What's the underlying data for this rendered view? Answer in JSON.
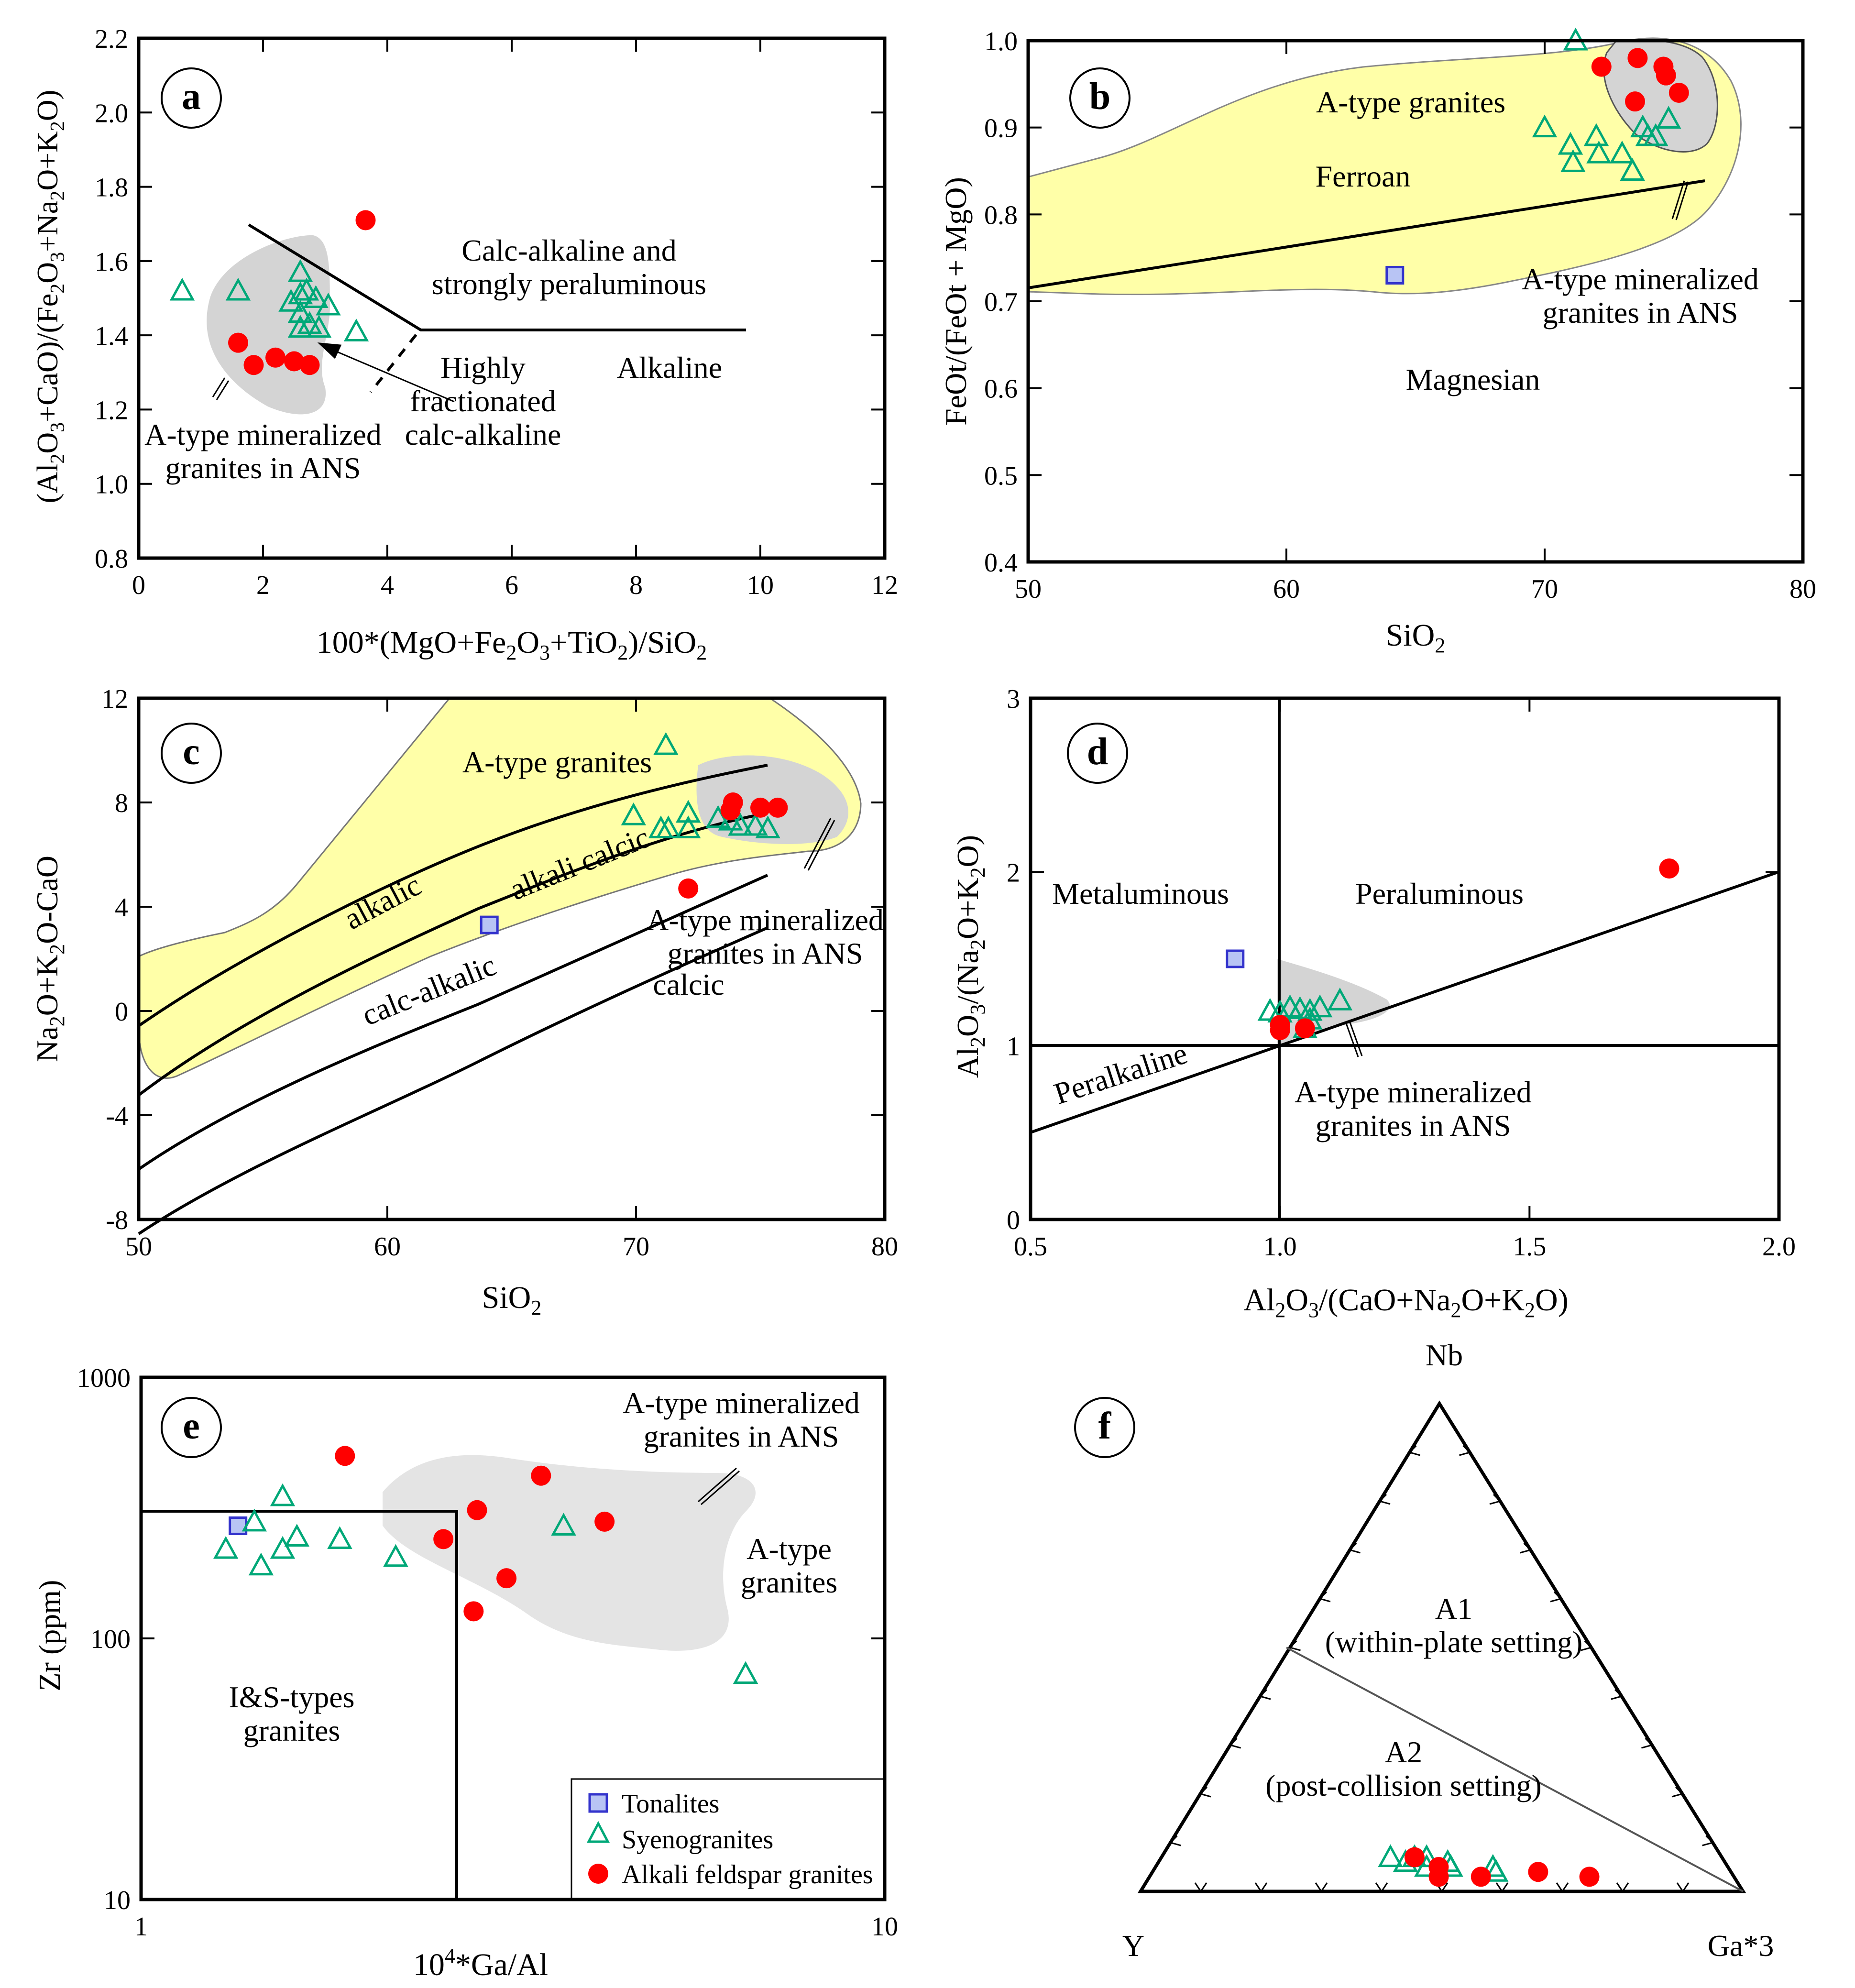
{
  "colors": {
    "a_type_field": "#ffffa8",
    "ans_field": "#d4d4d4",
    "ans_field_e": "#e4e4e4",
    "tonalite": "#3333cc",
    "tonalite_fill": "#b8c4f4",
    "syenogranite": "#00a878",
    "alkali_feldspar_granite": "#ff0000"
  },
  "legend": {
    "tonalites": "Tonalites",
    "syenogranites": "Syenogranites",
    "alkali_feldspar_granites": "Alkali feldspar granites"
  },
  "chart_data": [
    {
      "panel": "a",
      "type": "scatter",
      "xlabel": "100*(MgO+Fe2O3+TiO2)/SiO2",
      "ylabel": "(Al2O3+CaO)/(Fe2O3+Na2O+K2O)",
      "xlim": [
        0,
        12
      ],
      "ylim": [
        0.8,
        2.2
      ],
      "xticks": [
        "0",
        "2",
        "4",
        "6",
        "8",
        "10",
        "12"
      ],
      "yticks": [
        "0.8",
        "1.0",
        "1.2",
        "1.4",
        "1.6",
        "1.8",
        "2.0",
        "2.2"
      ],
      "annotations": [
        "Calc-alkaline and",
        "strongly peraluminous",
        "Alkaline",
        "Highly",
        "fractionated",
        "calc-alkaline",
        "A-type mineralized",
        "granites in ANS"
      ],
      "series": [
        {
          "name": "Syenogranites",
          "points": [
            [
              0.7,
              1.52
            ],
            [
              1.6,
              1.52
            ],
            [
              2.6,
              1.57
            ],
            [
              2.45,
              1.49
            ],
            [
              2.6,
              1.51
            ],
            [
              2.7,
              1.52
            ],
            [
              2.85,
              1.5
            ],
            [
              3.05,
              1.48
            ],
            [
              2.6,
              1.46
            ],
            [
              2.75,
              1.43
            ],
            [
              2.9,
              1.42
            ],
            [
              2.6,
              1.42
            ],
            [
              3.5,
              1.41
            ]
          ]
        },
        {
          "name": "Alkali feldspar granites",
          "points": [
            [
              3.65,
              1.71
            ],
            [
              1.6,
              1.38
            ],
            [
              1.85,
              1.32
            ],
            [
              2.2,
              1.34
            ],
            [
              2.5,
              1.33
            ],
            [
              2.75,
              1.32
            ]
          ]
        }
      ]
    },
    {
      "panel": "b",
      "type": "scatter",
      "xlabel": "SiO2",
      "ylabel": "FeOt/(FeOt + MgO)",
      "xlim": [
        50,
        80
      ],
      "ylim": [
        0.4,
        1.0
      ],
      "xticks": [
        "50",
        "60",
        "70",
        "80"
      ],
      "yticks": [
        "0.4",
        "0.5",
        "0.6",
        "0.7",
        "0.8",
        "0.9",
        "1.0"
      ],
      "annotations": [
        "A-type granites",
        "Ferroan",
        "Magnesian",
        "A-type mineralized",
        "granites in ANS"
      ],
      "series": [
        {
          "name": "Tonalites",
          "points": [
            [
              64.2,
              0.73
            ]
          ]
        },
        {
          "name": "Syenogranites",
          "points": [
            [
              71.2,
              1.0
            ],
            [
              70,
              0.9
            ],
            [
              71,
              0.88
            ],
            [
              71.1,
              0.86
            ],
            [
              72,
              0.89
            ],
            [
              72.1,
              0.87
            ],
            [
              73,
              0.87
            ],
            [
              73.4,
              0.85
            ],
            [
              73.8,
              0.9
            ],
            [
              74,
              0.89
            ],
            [
              74.3,
              0.89
            ],
            [
              74.8,
              0.91
            ]
          ]
        },
        {
          "name": "Alkali feldspar granites",
          "points": [
            [
              73.6,
              0.98
            ],
            [
              74.6,
              0.97
            ],
            [
              74.7,
              0.96
            ],
            [
              75.2,
              0.94
            ],
            [
              72.2,
              0.97
            ],
            [
              73.5,
              0.93
            ]
          ]
        }
      ]
    },
    {
      "panel": "c",
      "type": "scatter",
      "xlabel": "SiO2",
      "ylabel": "Na2O+K2O-CaO",
      "xlim": [
        50,
        80
      ],
      "ylim": [
        -8,
        12
      ],
      "xticks": [
        "50",
        "60",
        "70",
        "80"
      ],
      "yticks": [
        "-8",
        "-4",
        "0",
        "4",
        "8",
        "12"
      ],
      "annotations": [
        "A-type granites",
        "alkalic",
        "alkali calcic",
        "calc-alkalic",
        "calcic",
        "A-type mineralized",
        "granites in ANS"
      ],
      "series": [
        {
          "name": "Tonalites",
          "points": [
            [
              64.1,
              3.3
            ]
          ]
        },
        {
          "name": "Syenogranites",
          "points": [
            [
              71.2,
              10.2
            ],
            [
              69.9,
              7.5
            ],
            [
              71,
              7
            ],
            [
              71.3,
              7
            ],
            [
              72.1,
              7.6
            ],
            [
              72.1,
              7
            ],
            [
              73.3,
              7.4
            ],
            [
              73.8,
              7.3
            ],
            [
              74.2,
              7.1
            ],
            [
              74.8,
              7.1
            ],
            [
              75.3,
              7
            ]
          ]
        },
        {
          "name": "Alkali feldspar granites",
          "points": [
            [
              72.1,
              4.7
            ],
            [
              73.8,
              7.7
            ],
            [
              73.9,
              8
            ],
            [
              75,
              7.8
            ],
            [
              75.7,
              7.8
            ]
          ]
        }
      ]
    },
    {
      "panel": "d",
      "type": "scatter",
      "xlabel": "Al2O3/(CaO+Na2O+K2O)",
      "ylabel": "Al2O3/(Na2O+K2O)",
      "xlim": [
        0.5,
        2.0
      ],
      "ylim": [
        0,
        3
      ],
      "xticks": [
        "0.5",
        "1.0",
        "1.5",
        "2.0"
      ],
      "yticks": [
        "0",
        "1",
        "2",
        "3"
      ],
      "annotations": [
        "Metaluminous",
        "Peraluminous",
        "Peralkaline",
        "A-type mineralized",
        "granites in ANS"
      ],
      "series": [
        {
          "name": "Tonalites",
          "points": [
            [
              0.91,
              1.5
            ]
          ]
        },
        {
          "name": "Syenogranites",
          "points": [
            [
              0.98,
              1.2
            ],
            [
              1.0,
              1.19
            ],
            [
              1.02,
              1.22
            ],
            [
              1.04,
              1.21
            ],
            [
              1.06,
              1.2
            ],
            [
              1.08,
              1.22
            ],
            [
              1.12,
              1.26
            ],
            [
              1.06,
              1.15
            ],
            [
              1.05,
              1.1
            ]
          ]
        },
        {
          "name": "Alkali feldspar granites",
          "points": [
            [
              1.0,
              1.09
            ],
            [
              1.0,
              1.12
            ],
            [
              1.05,
              1.1
            ],
            [
              1.78,
              2.02
            ]
          ]
        }
      ]
    },
    {
      "panel": "e",
      "type": "scatter",
      "xlabel": "10^4*Ga/Al",
      "ylabel": "Zr (ppm)",
      "xscale": "log",
      "yscale": "log",
      "xlim": [
        1,
        10
      ],
      "ylim": [
        10,
        1000
      ],
      "xticks": [
        "1",
        "10"
      ],
      "yticks": [
        "10",
        "100",
        "1000"
      ],
      "annotations": [
        "A-type mineralized",
        "granites in ANS",
        "A-type",
        "granites",
        "I&S-types",
        "granites"
      ],
      "series": [
        {
          "name": "Tonalites",
          "points": [
            [
              1.35,
              270
            ]
          ]
        },
        {
          "name": "Syenogranites",
          "points": [
            [
              1.3,
              220
            ],
            [
              1.45,
              190
            ],
            [
              1.55,
              220
            ],
            [
              1.55,
              350
            ],
            [
              1.42,
              280
            ],
            [
              1.62,
              245
            ],
            [
              1.85,
              240
            ],
            [
              2.2,
              205
            ],
            [
              3.7,
              270
            ],
            [
              6.5,
              73
            ]
          ]
        },
        {
          "name": "Alkali feldspar granites",
          "points": [
            [
              1.88,
              500
            ],
            [
              2.55,
              240
            ],
            [
              2.83,
              310
            ],
            [
              2.8,
              127
            ],
            [
              3.1,
              170
            ],
            [
              3.45,
              420
            ],
            [
              4.2,
              280
            ]
          ]
        }
      ]
    },
    {
      "panel": "f",
      "type": "scatter",
      "kind": "ternary",
      "vertices": [
        "Nb",
        "Y",
        "Ga*3"
      ],
      "annotations": [
        "A1",
        "(within-plate setting)",
        "A2",
        "(post-collision setting)"
      ],
      "series": [
        {
          "name": "Syenogranites",
          "points": [
            [
              0.07,
              0.55,
              0.38
            ],
            [
              0.06,
              0.53,
              0.41
            ],
            [
              0.07,
              0.49,
              0.44
            ],
            [
              0.05,
              0.5,
              0.45
            ],
            [
              0.06,
              0.46,
              0.48
            ],
            [
              0.05,
              0.46,
              0.49
            ],
            [
              0.05,
              0.39,
              0.56
            ],
            [
              0.04,
              0.39,
              0.57
            ],
            [
              0.07,
              0.51,
              0.42
            ]
          ]
        },
        {
          "name": "Alkali feldspar granites",
          "points": [
            [
              0.07,
              0.51,
              0.42
            ],
            [
              0.05,
              0.48,
              0.47
            ],
            [
              0.03,
              0.49,
              0.48
            ],
            [
              0.03,
              0.42,
              0.55
            ],
            [
              0.04,
              0.32,
              0.64
            ],
            [
              0.03,
              0.24,
              0.73
            ]
          ]
        }
      ]
    }
  ]
}
